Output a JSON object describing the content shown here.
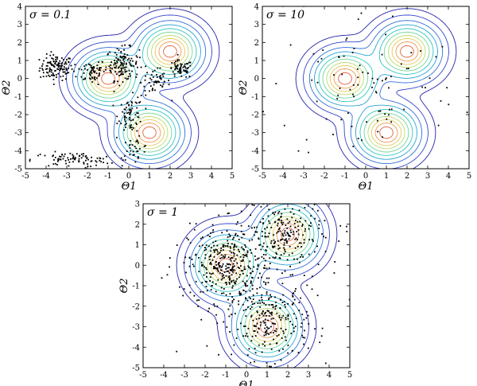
{
  "chart_data": [
    {
      "type": "scatter",
      "title": "σ = 0.1",
      "xlabel": "Θ1",
      "ylabel": "Θ2",
      "xlim": [
        -5,
        5
      ],
      "ylim": [
        -5,
        4
      ],
      "xticks": [
        "-5",
        "-4",
        "-3",
        "-2",
        "-1",
        "0",
        "1",
        "2",
        "3",
        "4",
        "5"
      ],
      "yticks": [
        "-5",
        "-4",
        "-3",
        "-2",
        "-1",
        "0",
        "1",
        "2",
        "3",
        "4"
      ],
      "series": [
        {
          "kind": "contour",
          "description": "density of three-component Gaussian mixture",
          "centers": [
            [
              -1,
              0
            ],
            [
              1,
              -3
            ],
            [
              2,
              1.5
            ]
          ]
        },
        {
          "kind": "samples",
          "clusters": [
            {
              "cx": -3.5,
              "cy": 0.6,
              "sx": 0.4,
              "sy": 0.35,
              "n": 120
            },
            {
              "cx": -1.8,
              "cy": 0.4,
              "sx": 0.35,
              "sy": 0.35,
              "n": 60
            },
            {
              "cx": -0.3,
              "cy": 0.8,
              "sx": 0.4,
              "sy": 0.45,
              "n": 130
            },
            {
              "cx": 1.3,
              "cy": -0.2,
              "sx": 0.35,
              "sy": 0.4,
              "n": 50
            },
            {
              "cx": 2.5,
              "cy": 0.5,
              "sx": 0.3,
              "sy": 0.25,
              "n": 60
            },
            {
              "cx": 0.1,
              "cy": -2.0,
              "sx": 0.3,
              "sy": 0.5,
              "n": 70
            },
            {
              "cx": 0.3,
              "cy": -3.9,
              "sx": 0.35,
              "sy": 0.3,
              "n": 30
            },
            {
              "cx": -2.7,
              "cy": -4.5,
              "sx": 1.0,
              "sy": 0.2,
              "n": 90
            }
          ]
        }
      ]
    },
    {
      "type": "scatter",
      "title": "σ = 10",
      "xlabel": "Θ1",
      "ylabel": "Θ2",
      "xlim": [
        -5,
        5
      ],
      "ylim": [
        -5,
        4
      ],
      "xticks": [
        "-5",
        "-4",
        "-3",
        "-2",
        "-1",
        "0",
        "1",
        "2",
        "3",
        "4",
        "5"
      ],
      "yticks": [
        "-5",
        "-4",
        "-3",
        "-2",
        "-1",
        "0",
        "1",
        "2",
        "3",
        "4"
      ],
      "series": [
        {
          "kind": "contour",
          "description": "density of three-component Gaussian mixture",
          "centers": [
            [
              -1,
              0
            ],
            [
              1,
              -3
            ],
            [
              2,
              1.5
            ]
          ]
        },
        {
          "kind": "samples",
          "clusters": [
            {
              "cx": 0,
              "cy": -0.5,
              "sx": 2.3,
              "sy": 2.2,
              "n": 90
            }
          ]
        }
      ]
    },
    {
      "type": "scatter",
      "title": "σ = 1",
      "xlabel": "Θ1",
      "ylabel": "Θ2",
      "xlim": [
        -5,
        5
      ],
      "ylim": [
        -5,
        3
      ],
      "xticks": [
        "-5",
        "-4",
        "-3",
        "-2",
        "-1",
        "0",
        "1",
        "2",
        "3",
        "4",
        "5"
      ],
      "yticks": [
        "-5",
        "-4",
        "-3",
        "-2",
        "-1",
        "0",
        "1",
        "2",
        "3"
      ],
      "series": [
        {
          "kind": "contour",
          "description": "density of three-component Gaussian mixture",
          "centers": [
            [
              -1,
              0
            ],
            [
              1,
              -3
            ],
            [
              2,
              1.5
            ]
          ]
        },
        {
          "kind": "samples",
          "clusters": [
            {
              "cx": -1,
              "cy": 0,
              "sx": 0.9,
              "sy": 0.9,
              "n": 320
            },
            {
              "cx": 1.2,
              "cy": -2.8,
              "sx": 0.9,
              "sy": 0.9,
              "n": 220
            },
            {
              "cx": 1.8,
              "cy": 1.5,
              "sx": 0.9,
              "sy": 0.8,
              "n": 200
            },
            {
              "cx": 0,
              "cy": -0.5,
              "sx": 2.3,
              "sy": 2.0,
              "n": 100
            }
          ]
        }
      ]
    }
  ],
  "colors": {
    "contours": [
      "#2222aa",
      "#3344cc",
      "#2f6fd8",
      "#26a3d6",
      "#2fc6c0",
      "#6fd69a",
      "#b6dc6a",
      "#e6c95a",
      "#ee9a4e",
      "#e0603c"
    ],
    "points": "#000000",
    "axes": "#000000"
  }
}
